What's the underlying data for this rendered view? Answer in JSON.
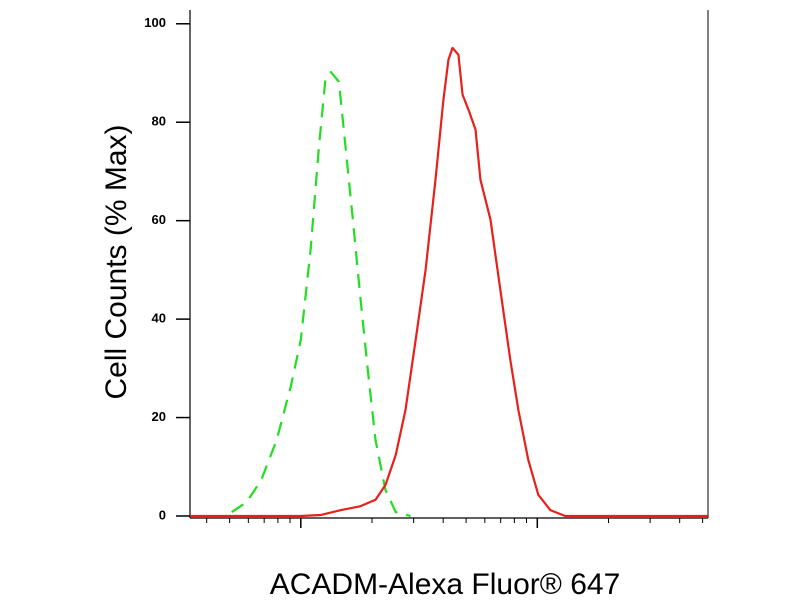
{
  "chart_data": {
    "type": "line",
    "y_label": "Cell Counts (% Max)",
    "x_label": "ACADM-Alexa Fluor® 647",
    "x_scale": "log",
    "xlim": [
      34,
      5270
    ],
    "xticks": [
      100,
      1000
    ],
    "xminor_ticks": [
      40,
      50,
      60,
      70,
      80,
      90,
      200,
      300,
      400,
      500,
      600,
      700,
      800,
      900,
      2000,
      3000,
      4000,
      5000
    ],
    "ylim": [
      0,
      102.8
    ],
    "yticks": [
      0,
      20,
      40,
      60,
      80,
      100
    ],
    "series": [
      {
        "color": "#22dd22",
        "dash": true,
        "x": [
          51,
          59,
          68,
          79,
          91,
          100,
          110,
          119,
          127,
          134,
          145,
          155,
          166,
          179,
          194,
          207,
          228,
          252,
          291
        ],
        "values": [
          0.8,
          2.8,
          7.3,
          15.4,
          26.6,
          35.8,
          54.1,
          74.4,
          88.6,
          90.2,
          88.2,
          74.4,
          60.2,
          43.9,
          27.6,
          15.4,
          5.3,
          0.8,
          0
        ]
      },
      {
        "color": "#e8201c",
        "dash": false,
        "x": [
          34,
          100,
          121,
          148,
          179,
          207,
          228,
          252,
          277,
          306,
          337,
          371,
          401,
          421,
          438,
          464,
          483,
          512,
          548,
          575,
          634,
          698,
          769,
          832,
          916,
          1010,
          1135,
          1312,
          5270
        ],
        "values": [
          0,
          0,
          0.2,
          1.2,
          2.0,
          3.3,
          6.3,
          12.4,
          21.5,
          35.8,
          50.0,
          68.3,
          84.6,
          92.7,
          95.1,
          93.7,
          85.6,
          82.5,
          78.5,
          68.3,
          60.2,
          45.9,
          31.7,
          21.5,
          11.4,
          4.3,
          1.2,
          0,
          0
        ]
      }
    ]
  }
}
